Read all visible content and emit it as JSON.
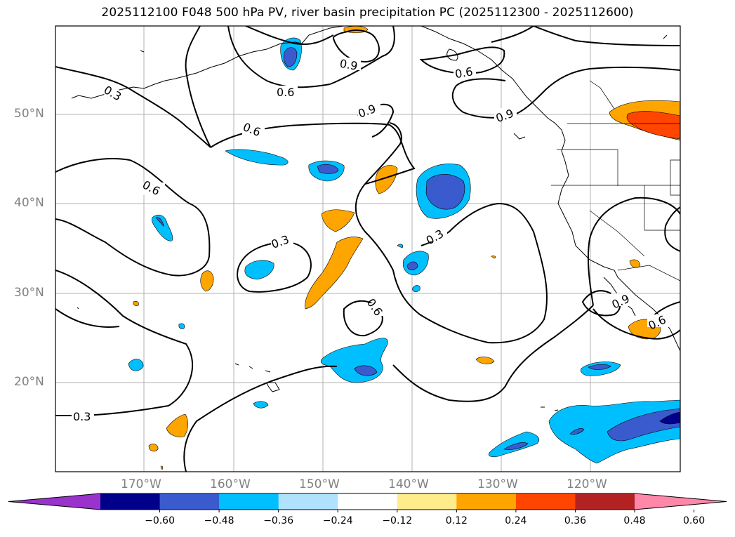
{
  "title": "2025112100 F048 500 hPa PV, river basin precipitation PC (2025112300 - 2025112600)",
  "lat_labels": [
    "50°N",
    "40°N",
    "30°N",
    "20°N"
  ],
  "lon_labels": [
    "170°W",
    "160°W",
    "150°W",
    "140°W",
    "130°W",
    "120°W"
  ],
  "contour_labels": [
    "0.3",
    "0.6",
    "0.9"
  ],
  "colorbar": {
    "ticks": [
      "−0.60",
      "−0.48",
      "−0.36",
      "−0.24",
      "−0.12",
      "0.12",
      "0.24",
      "0.36",
      "0.48",
      "0.60"
    ],
    "colors": [
      "#9933cc",
      "#00008b",
      "#3a5bcd",
      "#00bfff",
      "#b0e2ff",
      "#ffffff",
      "#ffec8b",
      "#ffa500",
      "#ff4500",
      "#b22222",
      "#ff88aa"
    ]
  }
}
